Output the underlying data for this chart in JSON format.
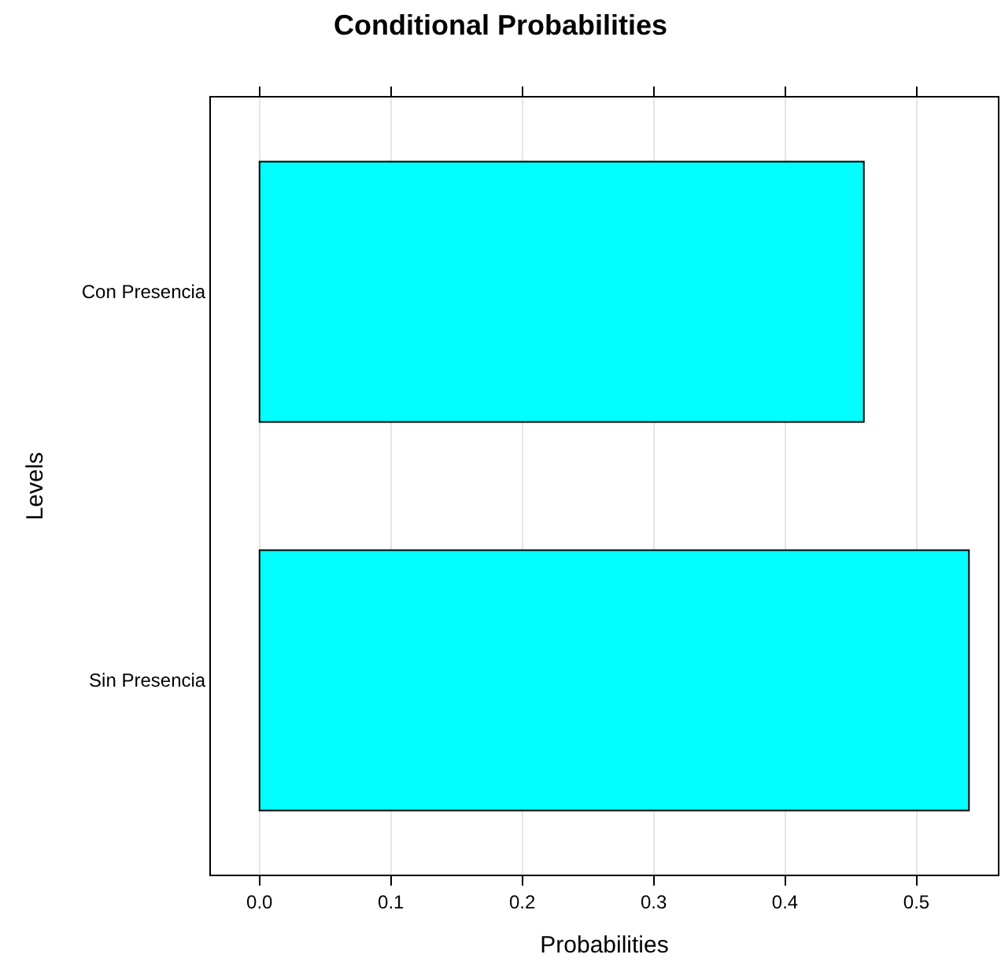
{
  "chart_data": {
    "type": "bar",
    "orientation": "horizontal",
    "title": "Conditional Probabilities",
    "xlabel": "Probabilities",
    "ylabel": "Levels",
    "categories": [
      "Con Presencia",
      "Sin Presencia"
    ],
    "values": [
      0.46,
      0.54
    ],
    "color": "#00ffff",
    "xlim": [
      -0.037,
      0.562
    ],
    "xticks": [
      {
        "value": 0,
        "label": "0.0"
      },
      0.1,
      0.2,
      0.3,
      0.4,
      0.5
    ],
    "grid": "x"
  }
}
